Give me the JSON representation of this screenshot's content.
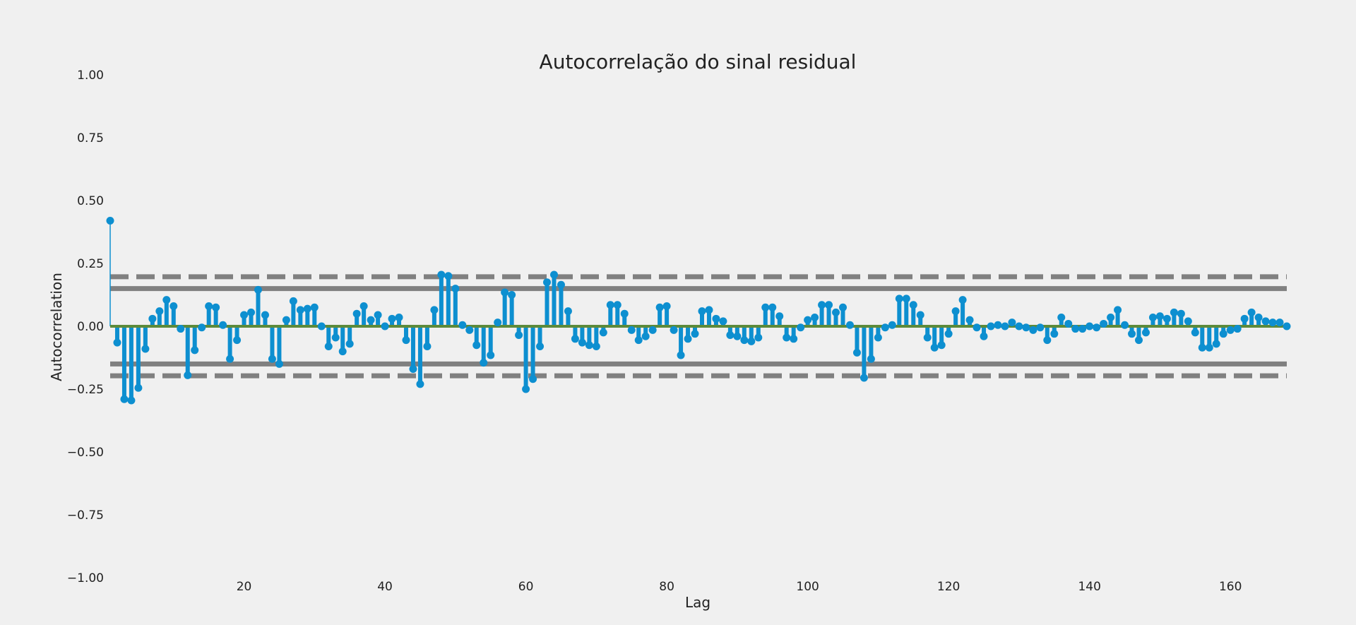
{
  "chart_data": {
    "type": "line",
    "subtype": "autocorrelation-stem",
    "title": "Autocorrelação do sinal residual",
    "xlabel": "Lag",
    "ylabel": "Autocorrelation",
    "xlim": [
      1,
      168
    ],
    "ylim": [
      -1.0,
      1.0
    ],
    "xticks": [
      20,
      40,
      60,
      80,
      100,
      120,
      140,
      160
    ],
    "yticks": [
      "1.00",
      "0.75",
      "0.50",
      "0.25",
      "0.00",
      "−0.25",
      "−0.50",
      "−0.75",
      "−1.00"
    ],
    "ytick_values": [
      1.0,
      0.75,
      0.5,
      0.25,
      0.0,
      -0.25,
      -0.5,
      -0.75,
      -1.0
    ],
    "grid": false,
    "legend": "none",
    "colors": {
      "stem": "#0d8fd0",
      "zero_line": "#5c8a3a",
      "confidence": "#808080",
      "background": "#f0f0f0"
    },
    "confidence_bands": [
      {
        "name": "95%",
        "value": 0.15,
        "style": "solid"
      },
      {
        "name": "99%",
        "value": 0.197,
        "style": "dashed"
      }
    ],
    "series": [
      {
        "lags": [
          1,
          2,
          3,
          4,
          5,
          6,
          7,
          8,
          9,
          10,
          11,
          12,
          13,
          14,
          15,
          16,
          17,
          18,
          19,
          20,
          21,
          22,
          23,
          24,
          25,
          26,
          27,
          28,
          29,
          30,
          31,
          32,
          33,
          34,
          35,
          36,
          37,
          38,
          39,
          40,
          41,
          42,
          43,
          44,
          45,
          46,
          47,
          48,
          49,
          50,
          51,
          52,
          53,
          54,
          55,
          56,
          57,
          58,
          59,
          60,
          61,
          62,
          63,
          64,
          65,
          66,
          67,
          68,
          69,
          70,
          71,
          72,
          73,
          74,
          75,
          76,
          77,
          78,
          79,
          80,
          81,
          82,
          83,
          84,
          85,
          86,
          87,
          88,
          89,
          90,
          91,
          92,
          93,
          94,
          95,
          96,
          97,
          98,
          99,
          100,
          101,
          102,
          103,
          104,
          105,
          106,
          107,
          108,
          109,
          110,
          111,
          112,
          113,
          114,
          115,
          116,
          117,
          118,
          119,
          120,
          121,
          122,
          123,
          124,
          125,
          126,
          127,
          128,
          129,
          130,
          131,
          132,
          133,
          134,
          135,
          136,
          137,
          138,
          139,
          140,
          141,
          142,
          143,
          144,
          145,
          146,
          147,
          148,
          149,
          150,
          151,
          152,
          153,
          154,
          155,
          156,
          157,
          158,
          159,
          160,
          161,
          162,
          163,
          164,
          165,
          166,
          167,
          168
        ],
        "values": [
          0.42,
          -0.065,
          -0.29,
          -0.295,
          -0.245,
          -0.09,
          0.03,
          0.06,
          0.105,
          0.08,
          -0.01,
          -0.195,
          -0.095,
          -0.005,
          0.08,
          0.075,
          0.005,
          -0.13,
          -0.055,
          0.045,
          0.055,
          0.145,
          0.045,
          -0.13,
          -0.15,
          0.025,
          0.1,
          0.065,
          0.07,
          0.075,
          0.0,
          -0.08,
          -0.045,
          -0.1,
          -0.07,
          0.05,
          0.08,
          0.025,
          0.045,
          0.0,
          0.03,
          0.035,
          -0.055,
          -0.17,
          -0.23,
          -0.08,
          0.065,
          0.205,
          0.2,
          0.15,
          0.005,
          -0.015,
          -0.075,
          -0.145,
          -0.115,
          0.015,
          0.135,
          0.125,
          -0.035,
          -0.25,
          -0.21,
          -0.08,
          0.175,
          0.205,
          0.165,
          0.06,
          -0.05,
          -0.065,
          -0.075,
          -0.08,
          -0.025,
          0.085,
          0.085,
          0.05,
          -0.015,
          -0.055,
          -0.04,
          -0.015,
          0.075,
          0.08,
          -0.015,
          -0.115,
          -0.05,
          -0.03,
          0.06,
          0.065,
          0.03,
          0.02,
          -0.035,
          -0.04,
          -0.055,
          -0.06,
          -0.045,
          0.075,
          0.075,
          0.04,
          -0.045,
          -0.05,
          -0.005,
          0.025,
          0.035,
          0.085,
          0.085,
          0.055,
          0.075,
          0.005,
          -0.105,
          -0.205,
          -0.13,
          -0.045,
          -0.005,
          0.005,
          0.11,
          0.11,
          0.085,
          0.045,
          -0.045,
          -0.085,
          -0.075,
          -0.03,
          0.06,
          0.105,
          0.025,
          -0.005,
          -0.04,
          0.0,
          0.005,
          0.0,
          0.015,
          0.0,
          -0.005,
          -0.015,
          -0.005,
          -0.055,
          -0.03,
          0.035,
          0.01,
          -0.01,
          -0.01,
          0.0,
          -0.005,
          0.01,
          0.035,
          0.065,
          0.005,
          -0.03,
          -0.055,
          -0.025,
          0.035,
          0.04,
          0.03,
          0.055,
          0.05,
          0.02,
          -0.025,
          -0.085,
          -0.085,
          -0.07,
          -0.03,
          -0.015,
          -0.01,
          0.03,
          0.055,
          0.035,
          0.02,
          0.015,
          0.015,
          0.0
        ]
      }
    ]
  }
}
